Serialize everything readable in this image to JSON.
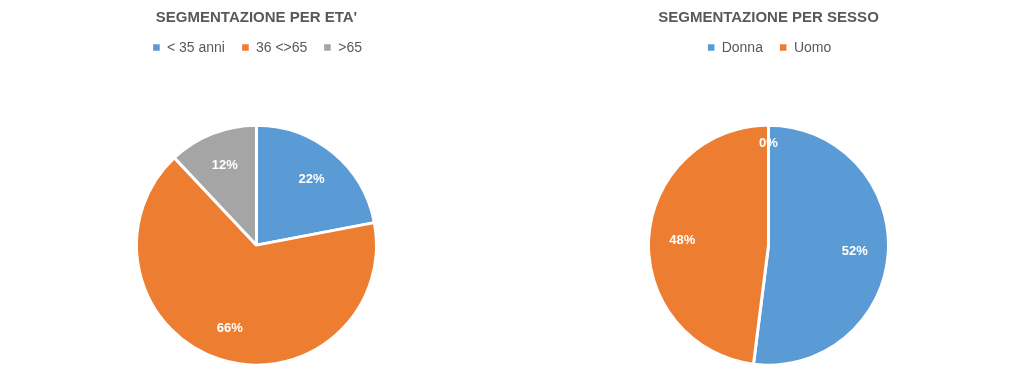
{
  "chart_data": [
    {
      "type": "pie",
      "title": "SEGMENTAZIONE PER ETA'",
      "categories": [
        "< 35 anni",
        "36 <>65",
        ">65"
      ],
      "values": [
        22,
        66,
        12
      ],
      "colors": [
        "#5b9bd5",
        "#ed7d31",
        "#a5a5a5"
      ],
      "value_labels": [
        "22%",
        "66%",
        "12%"
      ],
      "legend": "top"
    },
    {
      "type": "pie",
      "title": "SEGMENTAZIONE PER SESSO",
      "categories": [
        "Donna",
        "Uomo",
        null
      ],
      "values": [
        52,
        48,
        0
      ],
      "colors": [
        "#5b9bd5",
        "#ed7d31",
        "#a5a5a5"
      ],
      "value_labels": [
        "52%",
        "48%",
        "0%"
      ],
      "legend": "top"
    }
  ]
}
